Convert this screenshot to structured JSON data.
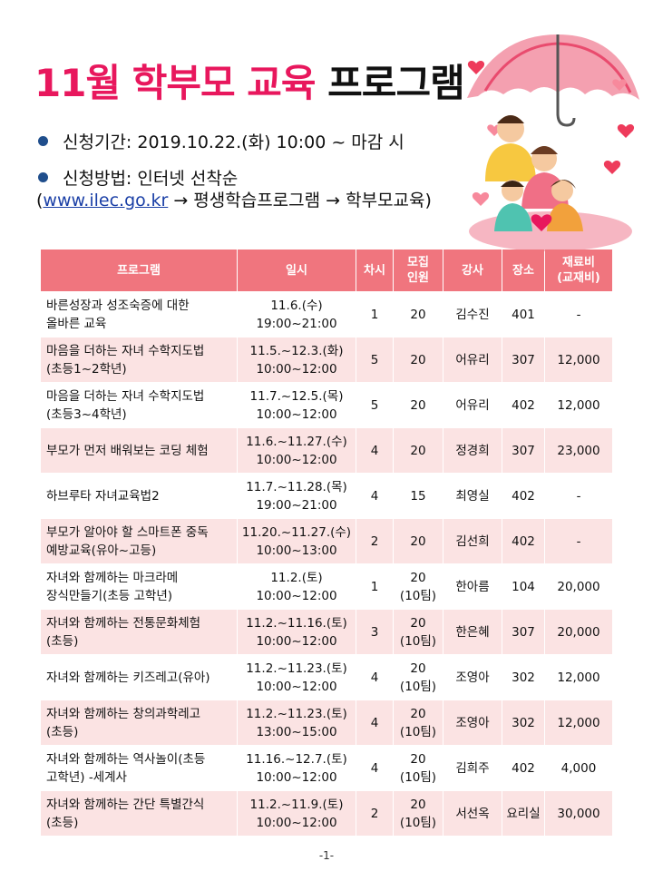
{
  "title": {
    "part1": "11월 학부모 교육",
    "part2": "프로그램"
  },
  "period": {
    "label": "신청기간: 2019.10.22.(화) 10:00 ~ 마감 시"
  },
  "method": {
    "label": "신청방법: 인터넷 선착순",
    "open": "(",
    "url": "www.ilec.go.kr",
    "path": " → 평생학습프로그램 → 학부모교육)"
  },
  "table": {
    "headers": {
      "program": "프로그램",
      "date": "일시",
      "sessions": "차시",
      "capacity_l1": "모집",
      "capacity_l2": "인원",
      "instructor": "강사",
      "room": "장소",
      "fee_l1": "재료비",
      "fee_l2": "(교재비)"
    },
    "rows": [
      {
        "program_l1": "바른성장과 성조숙증에 대한",
        "program_l2": "올바른 교육",
        "date_l1": "11.6.(수)",
        "date_l2": "19:00~21:00",
        "sessions": "1",
        "capacity_l1": "20",
        "capacity_l2": "",
        "instructor": "김수진",
        "room": "401",
        "fee": "-"
      },
      {
        "program_l1": "마음을 더하는 자녀 수학지도법",
        "program_l2": "(초등1~2학년)",
        "date_l1": "11.5.~12.3.(화)",
        "date_l2": "10:00~12:00",
        "sessions": "5",
        "capacity_l1": "20",
        "capacity_l2": "",
        "instructor": "어유리",
        "room": "307",
        "fee": "12,000"
      },
      {
        "program_l1": "마음을 더하는 자녀 수학지도법",
        "program_l2": "(초등3~4학년)",
        "date_l1": "11.7.~12.5.(목)",
        "date_l2": "10:00~12:00",
        "sessions": "5",
        "capacity_l1": "20",
        "capacity_l2": "",
        "instructor": "어유리",
        "room": "402",
        "fee": "12,000"
      },
      {
        "program_l1": "부모가 먼저 배워보는 코딩 체험",
        "program_l2": "",
        "date_l1": "11.6.~11.27.(수)",
        "date_l2": "10:00~12:00",
        "sessions": "4",
        "capacity_l1": "20",
        "capacity_l2": "",
        "instructor": "정경희",
        "room": "307",
        "fee": "23,000"
      },
      {
        "program_l1": "하브루타 자녀교육법2",
        "program_l2": "",
        "date_l1": "11.7.~11.28.(목)",
        "date_l2": "19:00~21:00",
        "sessions": "4",
        "capacity_l1": "15",
        "capacity_l2": "",
        "instructor": "최영실",
        "room": "402",
        "fee": "-"
      },
      {
        "program_l1": "부모가 알아야 할 스마트폰 중독",
        "program_l2": "예방교육(유아~고등)",
        "date_l1": "11.20.~11.27.(수)",
        "date_l2": "10:00~13:00",
        "sessions": "2",
        "capacity_l1": "20",
        "capacity_l2": "",
        "instructor": "김선희",
        "room": "402",
        "fee": "-"
      },
      {
        "program_l1": "자녀와 함께하는 마크라메",
        "program_l2": "장식만들기(초등 고학년)",
        "date_l1": "11.2.(토)",
        "date_l2": "10:00~12:00",
        "sessions": "1",
        "capacity_l1": "20",
        "capacity_l2": "(10팀)",
        "instructor": "한아름",
        "room": "104",
        "fee": "20,000"
      },
      {
        "program_l1": "자녀와 함께하는 전통문화체험",
        "program_l2": "(초등)",
        "date_l1": "11.2.~11.16.(토)",
        "date_l2": "10:00~12:00",
        "sessions": "3",
        "capacity_l1": "20",
        "capacity_l2": "(10팀)",
        "instructor": "한은혜",
        "room": "307",
        "fee": "20,000"
      },
      {
        "program_l1": "자녀와 함께하는 키즈레고(유아)",
        "program_l2": "",
        "date_l1": "11.2.~11.23.(토)",
        "date_l2": "10:00~12:00",
        "sessions": "4",
        "capacity_l1": "20",
        "capacity_l2": "(10팀)",
        "instructor": "조영아",
        "room": "302",
        "fee": "12,000"
      },
      {
        "program_l1": "자녀와 함께하는 창의과학레고",
        "program_l2": "(초등)",
        "date_l1": "11.2.~11.23.(토)",
        "date_l2": "13:00~15:00",
        "sessions": "4",
        "capacity_l1": "20",
        "capacity_l2": "(10팀)",
        "instructor": "조영아",
        "room": "302",
        "fee": "12,000"
      },
      {
        "program_l1": "자녀와 함께하는 역사놀이(초등",
        "program_l2": "고학년) -세계사",
        "date_l1": "11.16.~12.7.(토)",
        "date_l2": "10:00~12:00",
        "sessions": "4",
        "capacity_l1": "20",
        "capacity_l2": "(10팀)",
        "instructor": "김희주",
        "room": "402",
        "fee": "4,000"
      },
      {
        "program_l1": "자녀와 함께하는 간단 특별간식",
        "program_l2": "(초등)",
        "date_l1": "11.2.~11.9.(토)",
        "date_l2": "10:00~12:00",
        "sessions": "2",
        "capacity_l1": "20",
        "capacity_l2": "(10팀)",
        "instructor": "서선옥",
        "room": "요리실",
        "fee": "30,000"
      }
    ]
  },
  "page_number": "-1-",
  "colors": {
    "title_accent": "#e8175d",
    "header_bg": "#f0757e",
    "row_alt_bg": "#fbe3e3",
    "bullet": "#1f4e8c"
  },
  "icons": {
    "illustration": "family-under-heart-umbrella",
    "bullet": "bullet-dot-icon"
  }
}
